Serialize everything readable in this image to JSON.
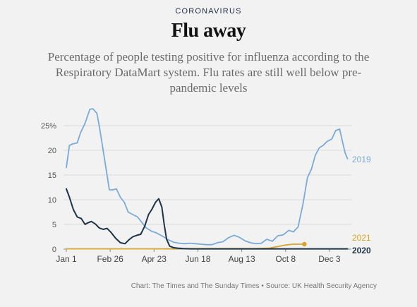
{
  "header": {
    "kicker": "CORONAVIRUS",
    "title": "Flu away",
    "subtitle": "Percentage of people testing positive for influenza according to the Respiratory DataMart system. Flu rates are still well below pre-pandemic levels"
  },
  "footer": {
    "source": "Chart: The Times and The Sunday Times • Source: UK Health Security Agency"
  },
  "colors": {
    "s2019": "#7aaad6",
    "s2020": "#1d3347",
    "s2021": "#d4a52a",
    "grid": "#d9d9d9",
    "axis": "#888888"
  },
  "chart_data": {
    "type": "line",
    "title": "Flu away",
    "xlabel": "",
    "ylabel": "",
    "xlim": [
      1,
      365
    ],
    "ylim": [
      0,
      25
    ],
    "x_unit": "day of year",
    "yticks": [
      0,
      5,
      10,
      15,
      20,
      25
    ],
    "ytick_labels": [
      "0",
      "5",
      "10",
      "15",
      "20",
      "25%"
    ],
    "xticks": [
      1,
      57,
      113,
      169,
      225,
      281,
      337
    ],
    "xtick_labels": [
      "Jan 1",
      "Feb 26",
      "Apr 23",
      "Jun 18",
      "Aug 13",
      "Oct 8",
      "Dec 3"
    ],
    "grid": "horizontal",
    "legend": "direct labels at right",
    "series": [
      {
        "name": "2019",
        "color": "#7aaad6",
        "x": [
          1,
          5,
          9,
          15,
          19,
          25,
          31,
          35,
          40,
          43,
          47,
          51,
          56,
          60,
          65,
          70,
          75,
          80,
          86,
          92,
          98,
          103,
          110,
          116,
          124,
          131,
          138,
          145,
          152,
          159,
          166,
          173,
          180,
          187,
          194,
          201,
          208,
          215,
          222,
          229,
          236,
          243,
          250,
          257,
          264,
          271,
          278,
          285,
          291,
          297,
          303,
          309,
          314,
          319,
          324,
          329,
          334,
          340,
          345,
          350,
          354,
          357,
          360
        ],
        "y": [
          16.5,
          21,
          21.3,
          21.5,
          23.5,
          25.5,
          28.3,
          28.4,
          27.5,
          25,
          21,
          17,
          12,
          12,
          12.2,
          10.5,
          9.5,
          7.5,
          7,
          6.5,
          5.3,
          4.3,
          3.6,
          3.3,
          2.6,
          1.9,
          1.4,
          1.2,
          1.1,
          1.2,
          1.1,
          1.0,
          0.9,
          0.9,
          1.3,
          1.5,
          2.3,
          2.8,
          2.4,
          1.7,
          1.3,
          1.1,
          1.2,
          2.0,
          1.6,
          2.7,
          2.9,
          3.8,
          3.5,
          4.5,
          9.0,
          14.5,
          16.2,
          19.0,
          20.5,
          21.0,
          21.8,
          22.3,
          24.0,
          24.3,
          21.5,
          19.5,
          18.3
        ]
      },
      {
        "name": "2020",
        "color": "#1d3347",
        "x": [
          1,
          5,
          10,
          15,
          20,
          25,
          28,
          33,
          38,
          43,
          48,
          53,
          58,
          64,
          70,
          76,
          81,
          86,
          91,
          96,
          101,
          106,
          110,
          115,
          119,
          123,
          126,
          129,
          133,
          138,
          143,
          150,
          160,
          175,
          200,
          230,
          260,
          280,
          300,
          320,
          340,
          360
        ],
        "y": [
          12.2,
          10.5,
          8,
          6.5,
          6.2,
          5,
          5.3,
          5.6,
          5.1,
          4.3,
          4.0,
          4.2,
          3.4,
          2.2,
          1.3,
          1.1,
          1.9,
          2.5,
          2.8,
          3.0,
          4.6,
          7.0,
          8.0,
          9.5,
          10.2,
          8.5,
          5.0,
          2.0,
          0.6,
          0.3,
          0.2,
          0.1,
          0.05,
          0.05,
          0.05,
          0.05,
          0.05,
          0.05,
          0.05,
          0.05,
          0.05,
          0.05
        ]
      },
      {
        "name": "2021",
        "color": "#d4a52a",
        "x": [
          1,
          30,
          60,
          90,
          120,
          150,
          180,
          210,
          240,
          260,
          270,
          280,
          290,
          300,
          305
        ],
        "y": [
          0.05,
          0.05,
          0.05,
          0.05,
          0.05,
          0.1,
          0.1,
          0.1,
          0.1,
          0.2,
          0.5,
          0.8,
          1.0,
          1.0,
          1.0
        ]
      }
    ]
  }
}
